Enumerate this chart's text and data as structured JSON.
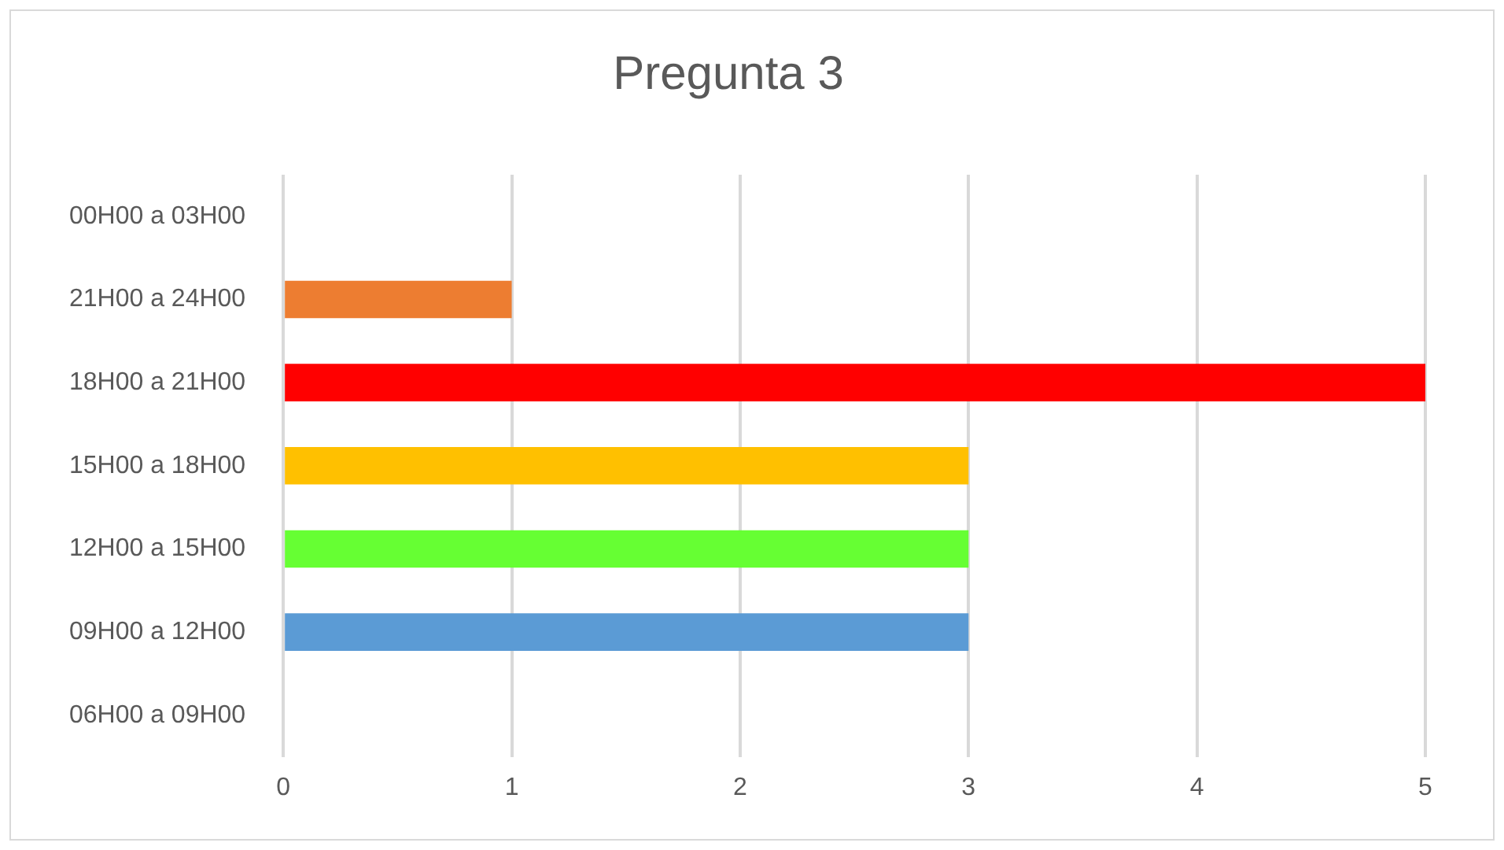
{
  "chart_data": {
    "type": "bar",
    "orientation": "horizontal",
    "title": "Pregunta 3",
    "categories": [
      "00H00 a 03H00",
      "21H00 a 24H00",
      "18H00 a 21H00",
      "15H00 a 18H00",
      "12H00 a 15H00",
      "09H00 a 12H00",
      "06H00 a 09H00"
    ],
    "values": [
      0,
      1,
      5,
      3,
      3,
      3,
      0
    ],
    "colors": [
      "#7f7f7f",
      "#ed7d31",
      "#ff0000",
      "#ffc000",
      "#66ff33",
      "#5b9bd5",
      "#7f7f7f"
    ],
    "xlim": [
      0,
      5
    ],
    "xticks": [
      0,
      1,
      2,
      3,
      4,
      5
    ],
    "grid": "x",
    "legend": false
  }
}
